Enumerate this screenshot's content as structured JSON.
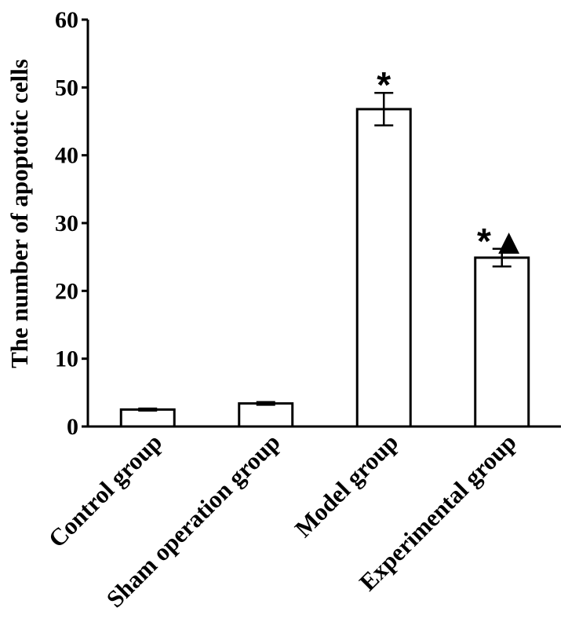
{
  "chart_data": {
    "type": "bar",
    "title": "",
    "xlabel": "",
    "ylabel": "The number of apoptotic cells",
    "categories": [
      "Control group",
      "Sham operation group",
      "Model group",
      "Experimental group"
    ],
    "values": [
      2.5,
      3.4,
      46.8,
      24.9
    ],
    "errors": [
      0.15,
      0.2,
      2.4,
      1.3
    ],
    "annotations": [
      "",
      "",
      "*",
      "*▲"
    ],
    "ylim": [
      0,
      60
    ],
    "yticks": [
      0,
      10,
      20,
      30,
      40,
      50,
      60
    ],
    "bar_fill": "#ffffff",
    "bar_stroke": "#000000",
    "grid": false,
    "legend": "none"
  }
}
